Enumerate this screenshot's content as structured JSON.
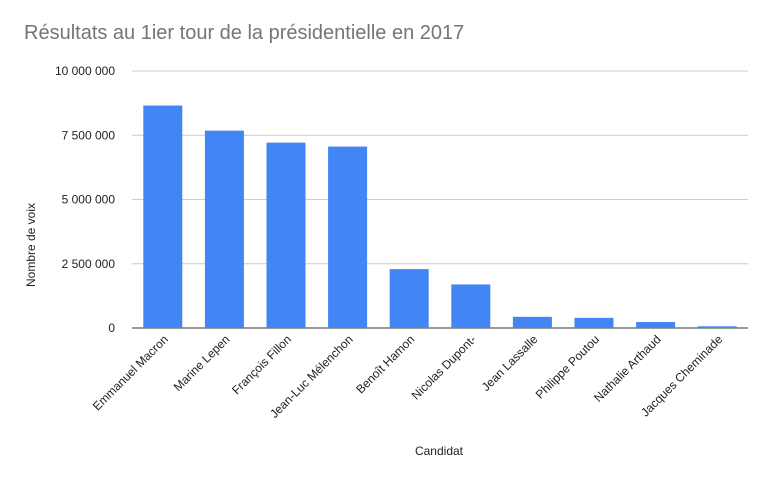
{
  "chart_data": {
    "type": "bar",
    "title": "Résultats au 1ier tour de la présidentielle en 2017",
    "xlabel": "Candidat",
    "ylabel": "Nombre de voix",
    "ylim": [
      0,
      10000000
    ],
    "yticks": [
      0,
      2500000,
      5000000,
      7500000,
      10000000
    ],
    "ytick_labels": [
      "0",
      "2 500 000",
      "5 000 000",
      "7 500 000",
      "10 000 000"
    ],
    "grid": true,
    "legend": "none",
    "bar_color": "#4285f4",
    "categories": [
      "Emmanuel Macron",
      "Marine Lepen",
      "François Fillon",
      "Jean-Luc Mélenchon",
      "Benoît Hamon",
      "Nicolas Dupont-",
      "Jean Lassalle",
      "Philippe Poutou",
      "Nathalie Arthaud",
      "Jacques Cheminade"
    ],
    "values": [
      8656346,
      7678491,
      7212995,
      7059951,
      2291288,
      1695000,
      435301,
      394505,
      232384,
      65586
    ]
  }
}
